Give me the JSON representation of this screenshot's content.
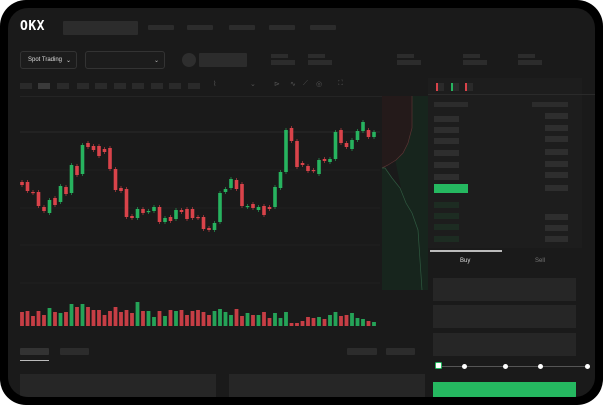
{
  "brand": "OKX",
  "header": {
    "nav_items": 5
  },
  "toolbar": {
    "market_dropdown": "Spot Trading",
    "pair_dropdown": "",
    "chevron_icon": "chevron-down-icon"
  },
  "chart_tools": [
    "indicator-icon",
    "candle-type-icon",
    "draw-line-icon",
    "ruler-icon",
    "camera-icon",
    "settings-icon",
    "fullscreen-icon"
  ],
  "orderbook": {
    "view_icons": [
      "orderbook-both-icon",
      "orderbook-bids-icon",
      "orderbook-asks-icon"
    ]
  },
  "trade": {
    "buy_label": "Buy",
    "sell_label": "Sell",
    "slider_fraction": 0
  },
  "colors": {
    "up": "#27b35f",
    "down": "#d9434a",
    "bg": "#1a1a1a",
    "accent": "#25b860"
  },
  "chart_data": {
    "type": "candlestick",
    "candles": [
      [
        118,
        115
      ],
      [
        118,
        109
      ],
      [
        108,
        107
      ],
      [
        108,
        94
      ],
      [
        93,
        89
      ],
      [
        87,
        100
      ],
      [
        102,
        95
      ],
      [
        98,
        114
      ],
      [
        113,
        106
      ],
      [
        107,
        135
      ],
      [
        134,
        125
      ],
      [
        126,
        155
      ],
      [
        157,
        153
      ],
      [
        154,
        150
      ],
      [
        154,
        144
      ],
      [
        151,
        148
      ],
      [
        152,
        131
      ],
      [
        131,
        110
      ],
      [
        112,
        109
      ],
      [
        111,
        83
      ],
      [
        84,
        82
      ],
      [
        82,
        91
      ],
      [
        91,
        87
      ],
      [
        88,
        89
      ],
      [
        89,
        93
      ],
      [
        93,
        78
      ],
      [
        78,
        82
      ],
      [
        83,
        79
      ],
      [
        81,
        90
      ],
      [
        90,
        88
      ],
      [
        91,
        81
      ],
      [
        91,
        82
      ],
      [
        83,
        82
      ],
      [
        83,
        71
      ],
      [
        72,
        70
      ],
      [
        70,
        77
      ],
      [
        78,
        107
      ],
      [
        108,
        111
      ],
      [
        112,
        121
      ],
      [
        120,
        111
      ],
      [
        116,
        94
      ],
      [
        93,
        94
      ],
      [
        96,
        92
      ],
      [
        90,
        93
      ],
      [
        94,
        85
      ],
      [
        93,
        91
      ],
      [
        93,
        113
      ],
      [
        112,
        128
      ],
      [
        128,
        170
      ],
      [
        172,
        159
      ],
      [
        159,
        133
      ],
      [
        137,
        135
      ],
      [
        134,
        129
      ],
      [
        130,
        129
      ],
      [
        126,
        140
      ],
      [
        141,
        139
      ],
      [
        138,
        141
      ],
      [
        141,
        168
      ],
      [
        170,
        157
      ],
      [
        157,
        153
      ],
      [
        151,
        160
      ],
      [
        160,
        169
      ],
      [
        169,
        178
      ],
      [
        170,
        163
      ],
      [
        163,
        168
      ]
    ],
    "volume": [
      14,
      15,
      10,
      15,
      11,
      18,
      14,
      13,
      14,
      22,
      19,
      22,
      19,
      16,
      16,
      11,
      15,
      19,
      14,
      16,
      13,
      24,
      15,
      15,
      9,
      15,
      10,
      16,
      15,
      16,
      11,
      15,
      16,
      14,
      11,
      15,
      17,
      14,
      11,
      17,
      10,
      13,
      11,
      11,
      14,
      8,
      13,
      8,
      14,
      3,
      3,
      5,
      9,
      8,
      9,
      7,
      11,
      14,
      10,
      11,
      13,
      8,
      7,
      5,
      4
    ],
    "grid": true
  }
}
